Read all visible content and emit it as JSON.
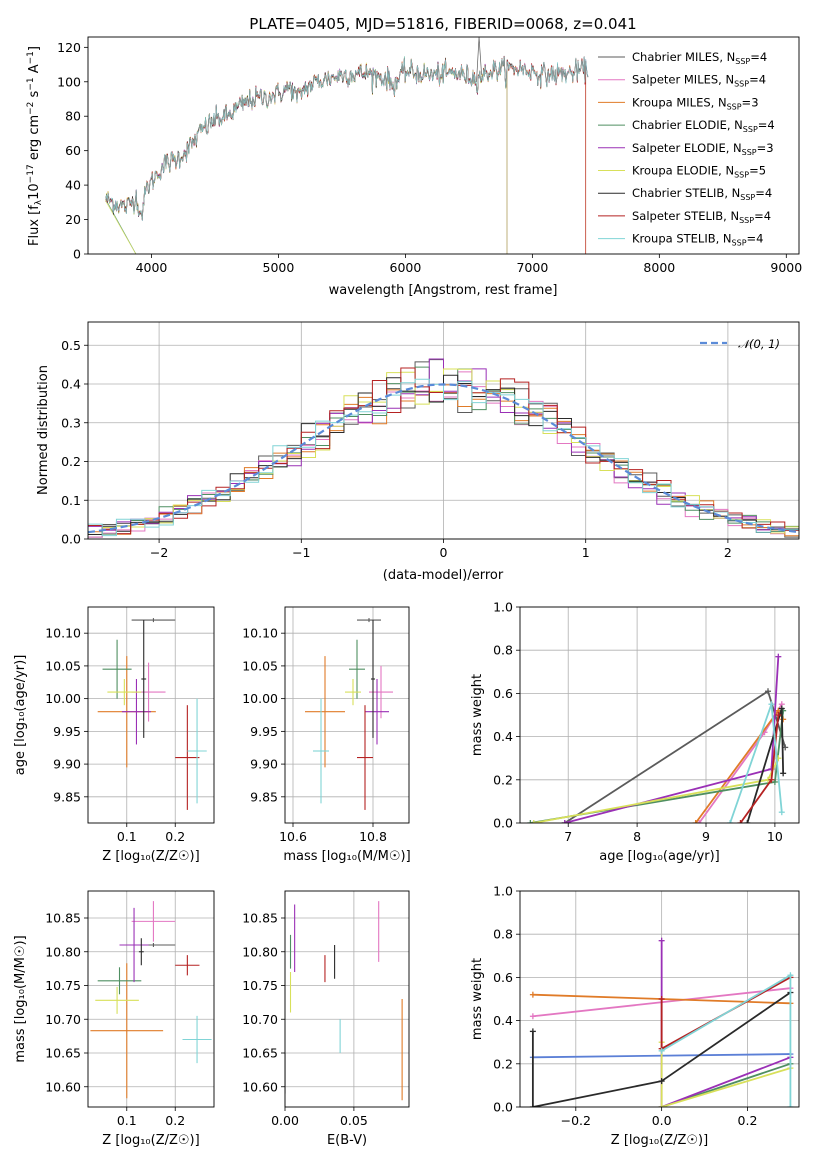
{
  "palette": [
    "#5b5b5b",
    "#e377c2",
    "#e07b28",
    "#4f8f62",
    "#9a30b6",
    "#d8e05a",
    "#2a2a2a",
    "#b52222",
    "#80d4d6"
  ],
  "chart_data": [
    {
      "id": "spectrum",
      "type": "line",
      "title": "PLATE=0405, MJD=51816, FIBERID=0068, z=0.041",
      "xlabel": "wavelength [Angstrom, rest frame]",
      "ylabel_parts": {
        "a": "Flux [f",
        "b": "λ",
        "c": "10",
        "d": "−17",
        "e": " erg cm",
        "f": "−2",
        "g": " s",
        "h": "−1",
        "i": " A",
        "j": "−1",
        "k": "]"
      },
      "xlim": [
        3500,
        9100
      ],
      "ylim": [
        0,
        126
      ],
      "xticks": [
        4000,
        5000,
        6000,
        7000,
        8000,
        9000
      ],
      "yticks": [
        0,
        20,
        40,
        60,
        80,
        100,
        120
      ],
      "legend_position": "right",
      "continuum": [
        [
          3640,
          32
        ],
        [
          3700,
          30
        ],
        [
          3800,
          27
        ],
        [
          3880,
          33
        ],
        [
          3920,
          22
        ],
        [
          3960,
          38
        ],
        [
          4000,
          42
        ],
        [
          4100,
          52
        ],
        [
          4200,
          55
        ],
        [
          4300,
          62
        ],
        [
          4400,
          72
        ],
        [
          4500,
          78
        ],
        [
          4600,
          80
        ],
        [
          4700,
          86
        ],
        [
          4800,
          90
        ],
        [
          4900,
          91
        ],
        [
          5000,
          93
        ],
        [
          5100,
          97
        ],
        [
          5150,
          90
        ],
        [
          5200,
          96
        ],
        [
          5300,
          100
        ],
        [
          5500,
          104
        ],
        [
          5700,
          105
        ],
        [
          5850,
          102
        ],
        [
          5900,
          98
        ],
        [
          6000,
          106
        ],
        [
          6200,
          104
        ],
        [
          6400,
          105
        ],
        [
          6560,
          102
        ],
        [
          6700,
          107
        ],
        [
          6900,
          108
        ],
        [
          7100,
          104
        ],
        [
          7300,
          105
        ],
        [
          7400,
          107
        ]
      ],
      "series": [
        {
          "name": "Chabrier MILES",
          "nssp": "4",
          "xmax": 8900,
          "drop": null
        },
        {
          "name": "Salpeter MILES",
          "nssp": "4",
          "xmax": 8900,
          "drop": null
        },
        {
          "name": "Kroupa MILES",
          "nssp": "3",
          "xmax": 7420,
          "drop": 7420
        },
        {
          "name": "Chabrier ELODIE",
          "nssp": "4",
          "xmax": 6800,
          "drop": 6800
        },
        {
          "name": "Salpeter ELODIE",
          "nssp": "3",
          "xmax": 6800,
          "drop": 6800
        },
        {
          "name": "Kroupa ELODIE",
          "nssp": "5",
          "xmax": 6800,
          "drop": 6800
        },
        {
          "name": "Chabrier STELIB",
          "nssp": "4",
          "xmax": 8900,
          "drop": null
        },
        {
          "name": "Salpeter STELIB",
          "nssp": "4",
          "xmax": 7420,
          "drop": 7420
        },
        {
          "name": "Kroupa STELIB",
          "nssp": "4",
          "xmax": 8900,
          "drop": null
        }
      ]
    },
    {
      "id": "residuals",
      "type": "histogram",
      "xlabel": "(data-model)/error",
      "ylabel": "Normed distribution",
      "xlim": [
        -2.5,
        2.5
      ],
      "ylim": [
        0,
        0.56
      ],
      "xticks": [
        -2,
        -1,
        0,
        1,
        2
      ],
      "yticks": [
        0.0,
        0.1,
        0.2,
        0.3,
        0.4,
        0.5
      ],
      "grid": true,
      "legend_label": "𝒩(0, 1)",
      "legend_position": "top-right",
      "bin_width": 0.1
    },
    {
      "id": "age_vs_Z",
      "type": "errorbar",
      "xlabel": "Z [log₁₀(Z/Z☉)]",
      "ylabel": "age  [log₁₀(age/yr)]",
      "xlim": [
        0.02,
        0.28
      ],
      "ylim": [
        9.81,
        10.14
      ],
      "xticks": [
        0.1,
        0.2
      ],
      "yticks": [
        9.85,
        9.9,
        9.95,
        10.0,
        10.05,
        10.1
      ],
      "grid": true,
      "points": [
        {
          "x": 0.155,
          "y": 10.12,
          "ex": 0.045,
          "ey": 0.0,
          "c": 0
        },
        {
          "x": 0.145,
          "y": 10.01,
          "ex": 0.035,
          "ey": 0.045,
          "c": 1
        },
        {
          "x": 0.1,
          "y": 9.98,
          "ex": 0.06,
          "ey": 0.085,
          "c": 2
        },
        {
          "x": 0.08,
          "y": 10.045,
          "ex": 0.03,
          "ey": 0.045,
          "c": 3
        },
        {
          "x": 0.12,
          "y": 9.98,
          "ex": 0.03,
          "ey": 0.05,
          "c": 4
        },
        {
          "x": 0.095,
          "y": 10.01,
          "ex": 0.035,
          "ey": 0.02,
          "c": 5
        },
        {
          "x": 0.135,
          "y": 10.03,
          "ex": 0.005,
          "ey": 0.09,
          "c": 6
        },
        {
          "x": 0.225,
          "y": 9.91,
          "ex": 0.025,
          "ey": 0.08,
          "c": 7
        },
        {
          "x": 0.245,
          "y": 9.92,
          "ex": 0.02,
          "ey": 0.08,
          "c": 8
        }
      ]
    },
    {
      "id": "age_vs_mass",
      "type": "errorbar",
      "xlabel": "mass [log₁₀(M/M☉)]",
      "ylabel": "",
      "xlim": [
        10.58,
        10.89
      ],
      "ylim": [
        9.81,
        10.14
      ],
      "xticks": [
        10.6,
        10.8
      ],
      "yticks": [
        9.85,
        9.9,
        9.95,
        10.0,
        10.05,
        10.1
      ],
      "grid": true,
      "points": [
        {
          "x": 10.79,
          "y": 10.12,
          "ex": 0.03,
          "ey": 0.0,
          "c": 0
        },
        {
          "x": 10.82,
          "y": 10.01,
          "ex": 0.03,
          "ey": 0.04,
          "c": 1
        },
        {
          "x": 10.68,
          "y": 9.98,
          "ex": 0.05,
          "ey": 0.085,
          "c": 2
        },
        {
          "x": 10.76,
          "y": 10.045,
          "ex": 0.02,
          "ey": 0.045,
          "c": 3
        },
        {
          "x": 10.81,
          "y": 9.98,
          "ex": 0.03,
          "ey": 0.05,
          "c": 4
        },
        {
          "x": 10.75,
          "y": 10.01,
          "ex": 0.02,
          "ey": 0.02,
          "c": 5
        },
        {
          "x": 10.8,
          "y": 10.03,
          "ex": 0.005,
          "ey": 0.09,
          "c": 6
        },
        {
          "x": 10.78,
          "y": 9.91,
          "ex": 0.02,
          "ey": 0.08,
          "c": 7
        },
        {
          "x": 10.67,
          "y": 9.92,
          "ex": 0.02,
          "ey": 0.08,
          "c": 8
        }
      ]
    },
    {
      "id": "weight_vs_age",
      "type": "line",
      "xlabel": "age  [log₁₀(age/yr)]",
      "ylabel": "mass weight",
      "xlim": [
        6.3,
        10.35
      ],
      "ylim": [
        0,
        1.0
      ],
      "xticks": [
        7,
        8,
        9,
        10
      ],
      "yticks": [
        0.0,
        0.2,
        0.4,
        0.6,
        0.8,
        1.0
      ],
      "grid": true,
      "lines": [
        {
          "c": 0,
          "pts": [
            [
              6.95,
              0.0
            ],
            [
              9.9,
              0.61
            ],
            [
              10.15,
              0.35
            ]
          ]
        },
        {
          "c": 1,
          "pts": [
            [
              8.9,
              0.0
            ],
            [
              9.85,
              0.42
            ],
            [
              10.1,
              0.55
            ]
          ]
        },
        {
          "c": 2,
          "pts": [
            [
              8.85,
              0.0
            ],
            [
              10.05,
              0.52
            ],
            [
              10.12,
              0.48
            ]
          ]
        },
        {
          "c": 3,
          "pts": [
            [
              6.45,
              0.0
            ],
            [
              10.0,
              0.19
            ],
            [
              10.12,
              0.52
            ]
          ]
        },
        {
          "c": 4,
          "pts": [
            [
              6.95,
              0.0
            ],
            [
              9.95,
              0.25
            ],
            [
              10.05,
              0.77
            ]
          ]
        },
        {
          "c": 5,
          "pts": [
            [
              6.5,
              0.0
            ],
            [
              9.9,
              0.2
            ],
            [
              10.05,
              0.3
            ]
          ]
        },
        {
          "c": 6,
          "pts": [
            [
              9.6,
              0.0
            ],
            [
              10.1,
              0.53
            ],
            [
              10.12,
              0.23
            ]
          ]
        },
        {
          "c": 7,
          "pts": [
            [
              9.5,
              0.0
            ],
            [
              9.95,
              0.2
            ],
            [
              10.05,
              0.5
            ]
          ]
        },
        {
          "c": 8,
          "pts": [
            [
              9.35,
              0.0
            ],
            [
              9.95,
              0.55
            ],
            [
              10.1,
              0.05
            ]
          ]
        }
      ]
    },
    {
      "id": "mass_vs_Z",
      "type": "errorbar",
      "xlabel": "Z [log₁₀(Z/Z☉)]",
      "ylabel": "mass [log₁₀(M/M☉)]",
      "xlim": [
        0.02,
        0.28
      ],
      "ylim": [
        10.57,
        10.89
      ],
      "xticks": [
        0.1,
        0.2
      ],
      "yticks": [
        10.6,
        10.65,
        10.7,
        10.75,
        10.8,
        10.85
      ],
      "grid": true,
      "points": [
        {
          "x": 0.155,
          "y": 10.81,
          "ex": 0.045,
          "ey": 0.0,
          "c": 0
        },
        {
          "x": 0.155,
          "y": 10.845,
          "ex": 0.045,
          "ey": 0.03,
          "c": 1
        },
        {
          "x": 0.1,
          "y": 10.683,
          "ex": 0.075,
          "ey": 0.1,
          "c": 2
        },
        {
          "x": 0.085,
          "y": 10.757,
          "ex": 0.045,
          "ey": 0.02,
          "c": 3
        },
        {
          "x": 0.115,
          "y": 10.81,
          "ex": 0.03,
          "ey": 0.055,
          "c": 4
        },
        {
          "x": 0.08,
          "y": 10.728,
          "ex": 0.045,
          "ey": 0.02,
          "c": 5
        },
        {
          "x": 0.13,
          "y": 10.8,
          "ex": 0.005,
          "ey": 0.02,
          "c": 6
        },
        {
          "x": 0.225,
          "y": 10.78,
          "ex": 0.025,
          "ey": 0.015,
          "c": 7
        },
        {
          "x": 0.245,
          "y": 10.67,
          "ex": 0.03,
          "ey": 0.035,
          "c": 8
        }
      ]
    },
    {
      "id": "mass_vs_ebv",
      "type": "errorbar",
      "xlabel": "E(B-V)",
      "ylabel": "",
      "xlim": [
        0.0,
        0.09
      ],
      "ylim": [
        10.57,
        10.89
      ],
      "xticks": [
        0.0,
        0.05
      ],
      "yticks": [
        10.6,
        10.65,
        10.7,
        10.75,
        10.8,
        10.85
      ],
      "grid": true,
      "points": [
        {
          "x": 0.0,
          "y": 10.62,
          "ex": 0.0,
          "ey": 0.03,
          "c": 0
        },
        {
          "x": 0.068,
          "y": 10.83,
          "ex": 0.0,
          "ey": 0.045,
          "c": 1
        },
        {
          "x": 0.085,
          "y": 10.655,
          "ex": 0.0,
          "ey": 0.075,
          "c": 2
        },
        {
          "x": 0.004,
          "y": 10.8,
          "ex": 0.0,
          "ey": 0.025,
          "c": 3
        },
        {
          "x": 0.007,
          "y": 10.82,
          "ex": 0.0,
          "ey": 0.05,
          "c": 4
        },
        {
          "x": 0.004,
          "y": 10.74,
          "ex": 0.0,
          "ey": 0.03,
          "c": 5
        },
        {
          "x": 0.036,
          "y": 10.785,
          "ex": 0.0,
          "ey": 0.025,
          "c": 6
        },
        {
          "x": 0.029,
          "y": 10.775,
          "ex": 0.0,
          "ey": 0.02,
          "c": 7
        },
        {
          "x": 0.04,
          "y": 10.675,
          "ex": 0.0,
          "ey": 0.025,
          "c": 8
        }
      ]
    },
    {
      "id": "weight_vs_Z",
      "type": "line",
      "xlabel": "Z [log₁₀(Z/Z☉)]",
      "ylabel": "mass weight",
      "xlim": [
        -0.33,
        0.32
      ],
      "ylim": [
        0,
        1.0
      ],
      "xticks": [
        -0.2,
        0.0,
        0.2
      ],
      "yticks": [
        0.0,
        0.2,
        0.4,
        0.6,
        0.8,
        1.0
      ],
      "grid": true,
      "lines": [
        {
          "c": 0,
          "pts": [
            [
              -0.3,
              0.23
            ],
            [
              0.3,
              0.245
            ]
          ],
          "col": "#5b7fd6"
        },
        {
          "c": 1,
          "pts": [
            [
              -0.3,
              0.42
            ],
            [
              0.3,
              0.55
            ]
          ]
        },
        {
          "c": 2,
          "pts": [
            [
              -0.3,
              0.52
            ],
            [
              0.3,
              0.48
            ]
          ]
        },
        {
          "c": 3,
          "pts": [
            [
              0.0,
              0.0
            ],
            [
              0.3,
              0.2
            ]
          ]
        },
        {
          "c": 4,
          "pts": [
            [
              0.0,
              0.77
            ],
            [
              0.0,
              0.0
            ],
            [
              0.3,
              0.23
            ]
          ]
        },
        {
          "c": 5,
          "pts": [
            [
              0.0,
              0.3
            ],
            [
              0.0,
              0.0
            ],
            [
              0.3,
              0.18
            ]
          ]
        },
        {
          "c": 6,
          "pts": [
            [
              -0.3,
              0.35
            ],
            [
              -0.3,
              0.0
            ],
            [
              0.0,
              0.12
            ],
            [
              0.3,
              0.53
            ]
          ]
        },
        {
          "c": 7,
          "pts": [
            [
              0.0,
              0.5
            ],
            [
              0.0,
              0.27
            ],
            [
              0.3,
              0.6
            ]
          ]
        },
        {
          "c": 8,
          "pts": [
            [
              0.0,
              0.26
            ],
            [
              0.3,
              0.61
            ],
            [
              0.3,
              0.0
            ]
          ]
        }
      ]
    }
  ]
}
